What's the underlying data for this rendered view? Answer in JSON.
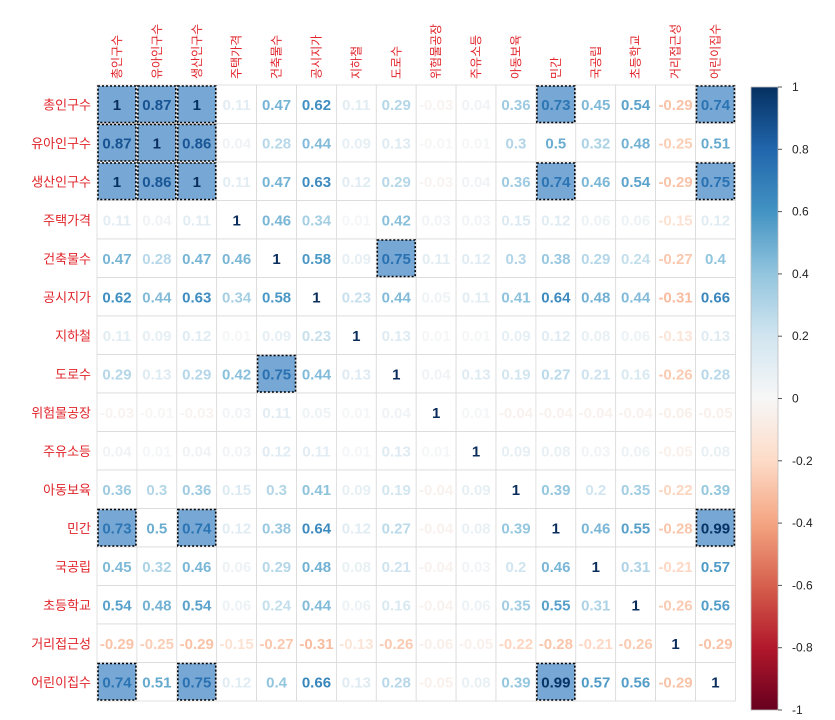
{
  "chart_data": {
    "type": "heatmap",
    "variables": [
      "총인구수",
      "유아인구수",
      "생산인구수",
      "주택가격",
      "건축물수",
      "공시지가",
      "지하철",
      "도로수",
      "위험물공장",
      "주유소등",
      "아동보육",
      "민간",
      "국공립",
      "초등학교",
      "거리접근성",
      "어린이집수"
    ],
    "matrix": [
      [
        1,
        0.87,
        1,
        0.11,
        0.47,
        0.62,
        0.11,
        0.29,
        -0.03,
        0.04,
        0.36,
        0.73,
        0.45,
        0.54,
        -0.29,
        0.74
      ],
      [
        0.87,
        1,
        0.86,
        0.04,
        0.28,
        0.44,
        0.09,
        0.13,
        -0.01,
        0.01,
        0.3,
        0.5,
        0.32,
        0.48,
        -0.25,
        0.51
      ],
      [
        1,
        0.86,
        1,
        0.11,
        0.47,
        0.63,
        0.12,
        0.29,
        -0.03,
        0.04,
        0.36,
        0.74,
        0.46,
        0.54,
        -0.29,
        0.75
      ],
      [
        0.11,
        0.04,
        0.11,
        1,
        0.46,
        0.34,
        0.01,
        0.42,
        0.03,
        0.03,
        0.15,
        0.12,
        0.06,
        0.06,
        -0.15,
        0.12
      ],
      [
        0.47,
        0.28,
        0.47,
        0.46,
        1,
        0.58,
        0.09,
        0.75,
        0.11,
        0.12,
        0.3,
        0.38,
        0.29,
        0.24,
        -0.27,
        0.4
      ],
      [
        0.62,
        0.44,
        0.63,
        0.34,
        0.58,
        1,
        0.23,
        0.44,
        0.05,
        0.11,
        0.41,
        0.64,
        0.48,
        0.44,
        -0.31,
        0.66
      ],
      [
        0.11,
        0.09,
        0.12,
        0.01,
        0.09,
        0.23,
        1,
        0.13,
        0.01,
        0.01,
        0.09,
        0.12,
        0.08,
        0.06,
        -0.13,
        0.13
      ],
      [
        0.29,
        0.13,
        0.29,
        0.42,
        0.75,
        0.44,
        0.13,
        1,
        0.04,
        0.13,
        0.19,
        0.27,
        0.21,
        0.16,
        -0.26,
        0.28
      ],
      [
        -0.03,
        -0.01,
        -0.03,
        0.03,
        0.11,
        0.05,
        0.01,
        0.04,
        1,
        0.01,
        -0.04,
        -0.04,
        -0.04,
        -0.04,
        -0.06,
        -0.05
      ],
      [
        0.04,
        0.01,
        0.04,
        0.03,
        0.12,
        0.11,
        0.01,
        0.13,
        0.01,
        1,
        0.09,
        0.08,
        0.03,
        0.06,
        -0.05,
        0.08
      ],
      [
        0.36,
        0.3,
        0.36,
        0.15,
        0.3,
        0.41,
        0.09,
        0.19,
        -0.04,
        0.09,
        1,
        0.39,
        0.2,
        0.35,
        -0.22,
        0.39
      ],
      [
        0.73,
        0.5,
        0.74,
        0.12,
        0.38,
        0.64,
        0.12,
        0.27,
        -0.04,
        0.08,
        0.39,
        1,
        0.46,
        0.55,
        -0.28,
        0.99
      ],
      [
        0.45,
        0.32,
        0.46,
        0.06,
        0.29,
        0.48,
        0.08,
        0.21,
        -0.04,
        0.03,
        0.2,
        0.46,
        1,
        0.31,
        -0.21,
        0.57
      ],
      [
        0.54,
        0.48,
        0.54,
        0.06,
        0.24,
        0.44,
        0.06,
        0.16,
        -0.04,
        0.06,
        0.35,
        0.55,
        0.31,
        1,
        -0.26,
        0.56
      ],
      [
        -0.29,
        -0.25,
        -0.29,
        -0.15,
        -0.27,
        -0.31,
        -0.13,
        -0.26,
        -0.06,
        -0.05,
        -0.22,
        -0.28,
        -0.21,
        -0.26,
        1,
        -0.29
      ],
      [
        0.74,
        0.51,
        0.75,
        0.12,
        0.4,
        0.66,
        0.13,
        0.28,
        -0.05,
        0.08,
        0.39,
        0.99,
        0.57,
        0.56,
        -0.29,
        1
      ]
    ],
    "highlight_threshold": 0.7,
    "color_range": [
      -1,
      1
    ],
    "colorbar_ticks": [
      1,
      0.8,
      0.6,
      0.4,
      0.2,
      0,
      -0.2,
      -0.4,
      -0.6,
      -0.8,
      -1
    ],
    "colors": {
      "negative_end": "#67001f",
      "neg_mid1": "#b2182b",
      "neg_mid2": "#d6604d",
      "neg_mid3": "#f4a582",
      "neg_light": "#fddbc7",
      "zero": "#f7f7f7",
      "pos_light": "#d1e5f0",
      "pos_mid3": "#92c5de",
      "pos_mid2": "#4393c3",
      "pos_mid1": "#2166ac",
      "positive_end": "#053061",
      "highlight_fill": "#77a7d4",
      "label_color": "#e0242a",
      "grid": "#d9d9d9"
    },
    "legend_position": "right"
  }
}
